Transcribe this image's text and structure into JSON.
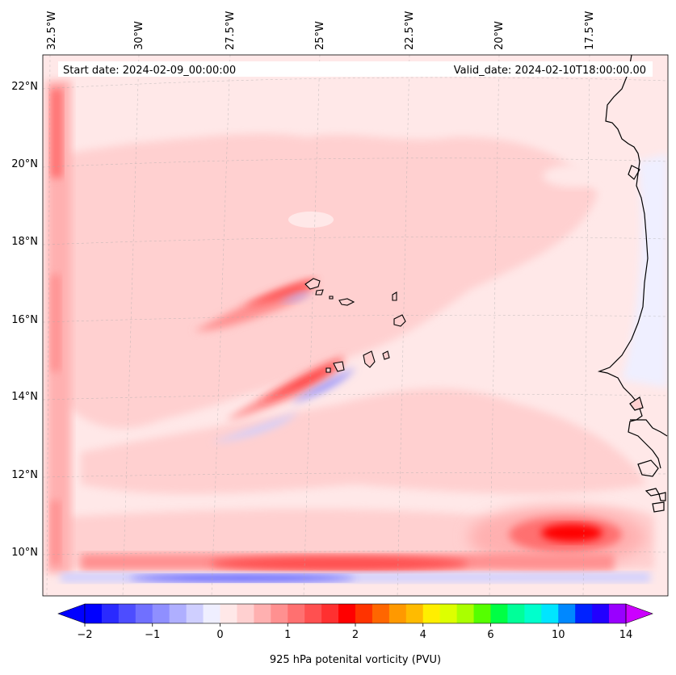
{
  "map": {
    "header": {
      "start_date": "Start date: 2024-02-09_00:00:00",
      "valid_date": "Valid_date: 2024-02-10T18:00:00.00"
    },
    "lon_labels": [
      "32.5°W",
      "30°W",
      "27.5°W",
      "25°W",
      "22.5°W",
      "20°W",
      "17.5°W"
    ],
    "lat_labels": [
      "22°N",
      "20°N",
      "18°N",
      "16°N",
      "14°N",
      "12°N",
      "10°N"
    ],
    "field": "925 hPa potential vorticity",
    "colorbar": {
      "label": "925 hPa potenital vorticity (PVU)",
      "ticks": [
        "−2",
        "−1",
        "0",
        "1",
        "2",
        "4",
        "6",
        "10",
        "14"
      ],
      "colors": [
        "#0000ff",
        "#2a2aff",
        "#4d4dff",
        "#7070ff",
        "#8f8fff",
        "#afafff",
        "#cfcfff",
        "#efefff",
        "#ffe8e8",
        "#ffd0d0",
        "#ffb0b0",
        "#ff9090",
        "#ff7070",
        "#ff5050",
        "#ff3030",
        "#ff0000",
        "#ff3300",
        "#ff6600",
        "#ff9900",
        "#ffbb00",
        "#ffee00",
        "#ddff00",
        "#aaff00",
        "#55ff00",
        "#00ff44",
        "#00ff99",
        "#00ffcc",
        "#00e5ff",
        "#0088ff",
        "#0022ff",
        "#2200ff",
        "#9900ff"
      ],
      "extend_low_color": "#0000ff",
      "extend_high_color": "#cc00ff"
    }
  }
}
